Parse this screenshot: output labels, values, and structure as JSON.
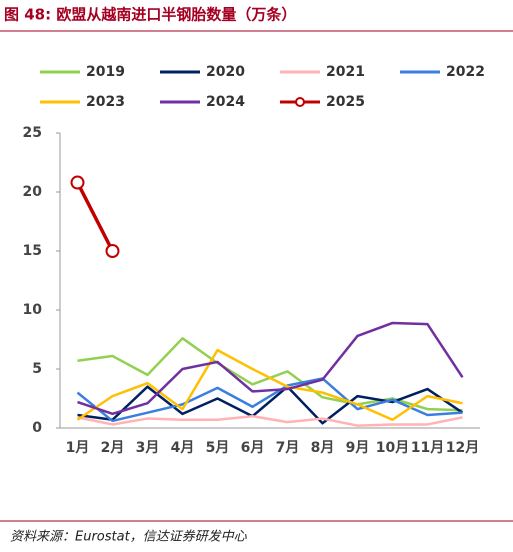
{
  "chart_data": {
    "type": "line",
    "title": "图 48:  欧盟从越南进口半钢胎数量（万条）",
    "source": "资料来源：Eurostat，信达证券研发中心",
    "categories": [
      "1月",
      "2月",
      "3月",
      "4月",
      "5月",
      "6月",
      "7月",
      "8月",
      "9月",
      "10月",
      "11月",
      "12月"
    ],
    "ylim": [
      0,
      25
    ],
    "yticks": [
      0,
      5,
      10,
      15,
      20,
      25
    ],
    "series": [
      {
        "name": "2019",
        "color": "#92d050",
        "values": [
          5.7,
          6.1,
          4.5,
          7.6,
          5.5,
          3.7,
          4.8,
          2.6,
          2.0,
          2.5,
          1.6,
          1.5
        ]
      },
      {
        "name": "2020",
        "color": "#002060",
        "values": [
          1.1,
          0.7,
          3.5,
          1.2,
          2.5,
          1.0,
          3.5,
          0.4,
          2.7,
          2.2,
          3.3,
          1.3
        ]
      },
      {
        "name": "2021",
        "color": "#ffb3b3",
        "values": [
          0.9,
          0.3,
          0.8,
          0.7,
          0.7,
          1.0,
          0.5,
          0.8,
          0.2,
          0.3,
          0.3,
          0.9
        ]
      },
      {
        "name": "2022",
        "color": "#3a7fe0",
        "values": [
          3.0,
          0.6,
          1.3,
          2.0,
          3.4,
          1.8,
          3.6,
          4.2,
          1.6,
          2.4,
          1.1,
          1.3
        ]
      },
      {
        "name": "2023",
        "color": "#ffc000",
        "values": [
          0.7,
          2.7,
          3.8,
          1.6,
          6.6,
          5.0,
          3.5,
          3.0,
          2.0,
          0.7,
          2.7,
          2.1
        ]
      },
      {
        "name": "2024",
        "color": "#7030a0",
        "values": [
          2.2,
          1.2,
          2.1,
          5.0,
          5.6,
          3.1,
          3.3,
          4.1,
          7.8,
          8.9,
          8.8,
          4.3
        ]
      },
      {
        "name": "2025",
        "color": "#c00000",
        "values": [
          20.8,
          15.0,
          null,
          null,
          null,
          null,
          null,
          null,
          null,
          null,
          null,
          null
        ],
        "markers": true
      }
    ]
  }
}
